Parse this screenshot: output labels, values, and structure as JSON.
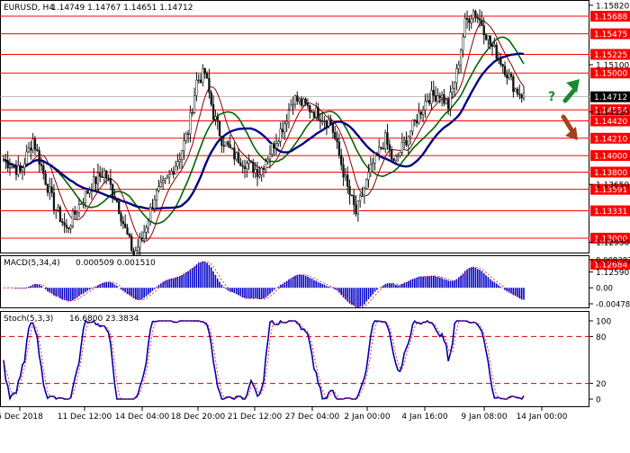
{
  "header": {
    "symbol": "EURUSD, H4",
    "ohlc": "1.14749 1.14767 1.14651 1.14712"
  },
  "colors": {
    "candle": "#111111",
    "sma_fast": "#8b0000",
    "sma_mid": "#006400",
    "sma_slow": "#000080",
    "level_line": "#ff0000",
    "level_label_bg": "#ff0000",
    "current_label_bg": "#000000",
    "macd_hist": "#0000cc",
    "macd_signal": "#ff0000",
    "stoch_main": "#0000aa",
    "stoch_signal": "#ff0000",
    "stoch_levels": "#cc0000",
    "arrow_up": "#1a8a2e",
    "arrow_down": "#a5401e",
    "frame": "#000000"
  },
  "chart_data": [
    {
      "type": "candlestick",
      "title": "EURUSD, H4",
      "subtitle": "1.14749 1.14767 1.14651 1.14712",
      "ylim": [
        1.2555,
        1.1585
      ],
      "current_price": "1.14712",
      "y_tick_labels": [
        "1.15820",
        "1.15100",
        "1.14530",
        "1.13650",
        "1.12950",
        "1.12590"
      ],
      "support_resistance_levels": [
        "1.15688",
        "1.15475",
        "1.15225",
        "1.15000",
        "1.14554",
        "1.14420",
        "1.14210",
        "1.14000",
        "1.13800",
        "1.13591",
        "1.13331",
        "1.13000",
        "1.12684"
      ],
      "x_tick_labels": [
        "6 Dec 2018",
        "11 Dec 12:00",
        "14 Dec 04:00",
        "18 Dec 20:00",
        "21 Dec 12:00",
        "27 Dec 04:00",
        "2 Jan 00:00",
        "4 Jan 16:00",
        "9 Jan 08:00",
        "14 Jan 00:00"
      ],
      "annotation": "?",
      "indicators": [
        "SMA fast",
        "SMA mid",
        "SMA slow"
      ]
    },
    {
      "type": "bar",
      "title": "MACD(5,34,4)",
      "values_label": "0.000509 0.001510",
      "y_tick_labels": [
        "0.008382",
        "0.00",
        "-0.004787"
      ],
      "ylim": [
        -0.004787,
        0.008382
      ]
    },
    {
      "type": "line",
      "title": "Stoch(5,3,3)",
      "values_label": "16.6800 23.3834",
      "ylim": [
        0,
        100
      ],
      "y_tick_labels": [
        "100",
        "80",
        "20",
        "0"
      ],
      "levels": [
        80,
        20
      ]
    }
  ]
}
